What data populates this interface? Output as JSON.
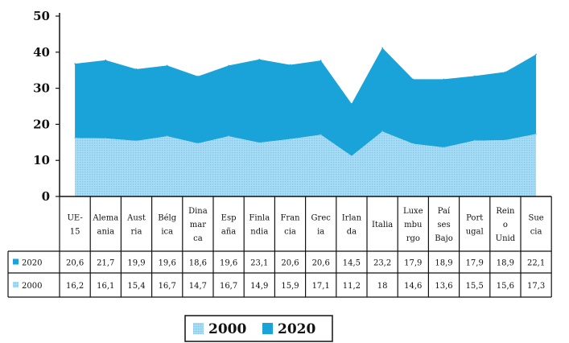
{
  "chart_data": {
    "type": "area",
    "categories": [
      "UE-15",
      "Alemania",
      "Austria",
      "Bélgica",
      "Dinamarca",
      "España",
      "Finlandia",
      "Francia",
      "Grecia",
      "Irlanda",
      "Italia",
      "Luxemburgo",
      "Países Bajos",
      "Portugal",
      "Reino Unido",
      "Suecia"
    ],
    "category_labels": [
      [
        "UE-",
        "15"
      ],
      [
        "Alema",
        "ania"
      ],
      [
        "Aust",
        "ria"
      ],
      [
        "Bélg",
        "ica"
      ],
      [
        "Dina",
        "mar",
        "ca"
      ],
      [
        "Esp",
        "aña"
      ],
      [
        "Finla",
        "ndia"
      ],
      [
        "Fran",
        "cia"
      ],
      [
        "Grec",
        "ia"
      ],
      [
        "Irlan",
        "da"
      ],
      [
        "Italia"
      ],
      [
        "Luxe",
        "mbu",
        "rgo"
      ],
      [
        "Paí",
        "ses",
        "Bajo"
      ],
      [
        "Port",
        "ugal"
      ],
      [
        "Rein",
        "o",
        "Unid"
      ],
      [
        "Sue",
        "cia"
      ]
    ],
    "series": [
      {
        "name": "2020",
        "values": [
          20.6,
          21.7,
          19.9,
          19.6,
          18.6,
          19.6,
          23.1,
          20.6,
          20.6,
          14.5,
          23.2,
          17.9,
          18.9,
          17.9,
          18.9,
          22.1
        ],
        "display": [
          "20,6",
          "21,7",
          "19,9",
          "19,6",
          "18,6",
          "19,6",
          "23,1",
          "20,6",
          "20,6",
          "14,5",
          "23,2",
          "17,9",
          "18,9",
          "17,9",
          "18,9",
          "22,1"
        ]
      },
      {
        "name": "2000",
        "values": [
          16.2,
          16.1,
          15.4,
          16.7,
          14.7,
          16.7,
          14.9,
          15.9,
          17.1,
          11.2,
          18,
          14.6,
          13.6,
          15.5,
          15.6,
          17.3
        ],
        "display": [
          "16,2",
          "16,1",
          "15,4",
          "16,7",
          "14,7",
          "16,7",
          "14,9",
          "15,9",
          "17,1",
          "11,2",
          "18",
          "14,6",
          "13,6",
          "15,5",
          "15,6",
          "17,3"
        ]
      }
    ],
    "stacked": true,
    "ylim": [
      0,
      50
    ],
    "yticks": [
      "0",
      "10",
      "20",
      "30",
      "40",
      "50"
    ],
    "legend": {
      "placement": "bottom",
      "entries": [
        "2000",
        "2020"
      ]
    },
    "colors": {
      "2000": "#9fd8f2",
      "2020": "#19a3d8",
      "axis": "#111111"
    },
    "grid": false
  }
}
